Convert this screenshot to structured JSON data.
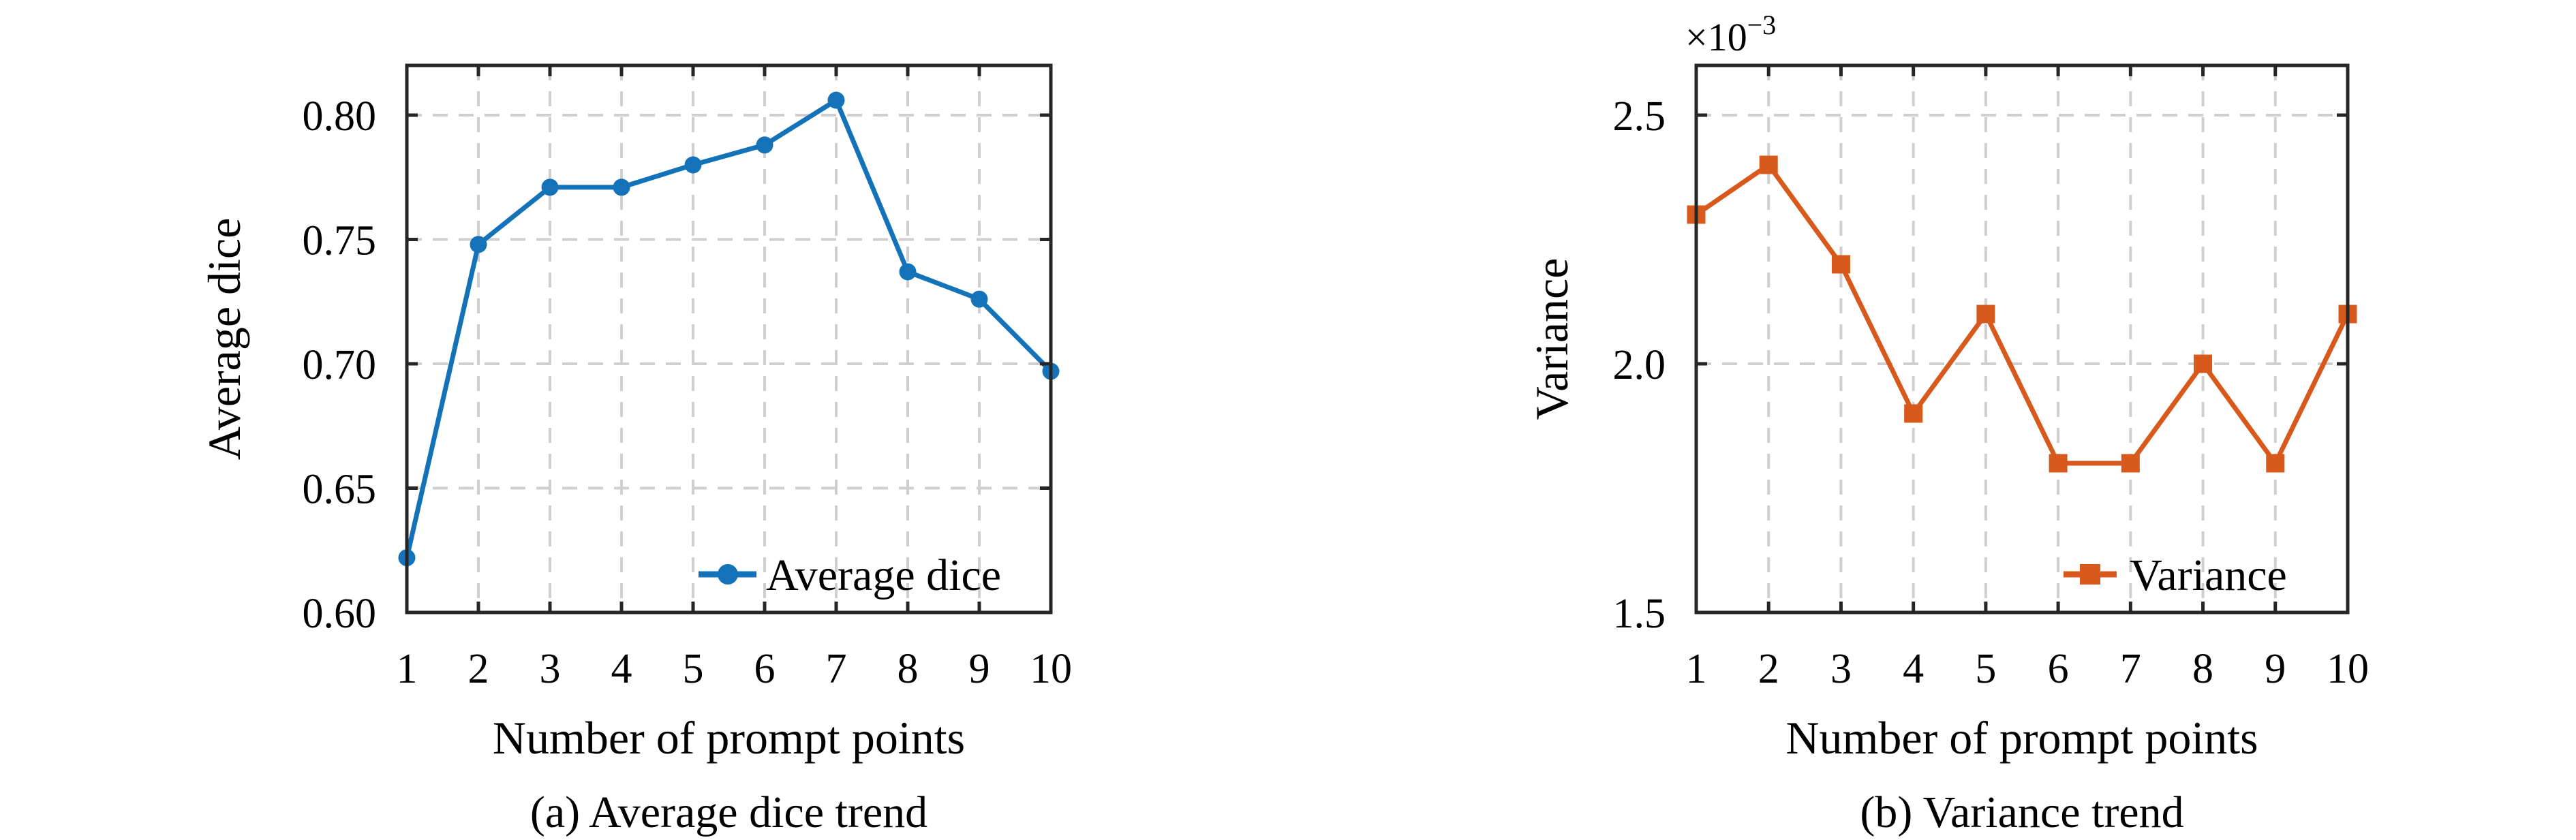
{
  "figure": {
    "panels": [
      {
        "id": "a",
        "caption": "(a) Average dice trend"
      },
      {
        "id": "b",
        "caption": "(b) Variance trend"
      }
    ]
  },
  "colors": {
    "axis": "#262626",
    "grid": "#cfcfcf",
    "text": "#000000",
    "background": "#ffffff",
    "series_blue": "#1472b9",
    "series_orange": "#d8591c"
  },
  "chart_data": [
    {
      "type": "line",
      "title": "",
      "xlabel": "Number of prompt points",
      "ylabel": "Average dice",
      "x": [
        1,
        2,
        3,
        4,
        5,
        6,
        7,
        8,
        9,
        10
      ],
      "series": [
        {
          "name": "Average dice",
          "color": "#1472b9",
          "marker": "circle",
          "values": [
            0.622,
            0.748,
            0.771,
            0.771,
            0.78,
            0.788,
            0.806,
            0.737,
            0.726,
            0.697
          ]
        }
      ],
      "xlim": [
        1,
        10
      ],
      "ylim": [
        0.6,
        0.82
      ],
      "xticks": [
        1,
        2,
        3,
        4,
        5,
        6,
        7,
        8,
        9,
        10
      ],
      "xtick_labels": [
        "1",
        "2",
        "3",
        "4",
        "5",
        "6",
        "7",
        "8",
        "9",
        "10"
      ],
      "yticks": [
        0.6,
        0.65,
        0.7,
        0.75,
        0.8
      ],
      "ytick_labels": [
        "0.60",
        "0.65",
        "0.70",
        "0.75",
        "0.80"
      ],
      "grid": true,
      "legend": {
        "labels": [
          "Average dice"
        ],
        "position": "inside-lower-right",
        "box": false
      }
    },
    {
      "type": "line",
      "title": "",
      "xlabel": "Number of prompt points",
      "ylabel": "Variance",
      "scale_label": {
        "base": "×10",
        "exponent": "−3"
      },
      "x": [
        1,
        2,
        3,
        4,
        5,
        6,
        7,
        8,
        9,
        10
      ],
      "series": [
        {
          "name": "Variance",
          "color": "#d8591c",
          "marker": "square",
          "values": [
            2.3,
            2.4,
            2.2,
            1.9,
            2.1,
            1.8,
            1.8,
            2.0,
            1.8,
            2.1
          ]
        }
      ],
      "xlim": [
        1,
        10
      ],
      "ylim": [
        1.5,
        2.6
      ],
      "xticks": [
        1,
        2,
        3,
        4,
        5,
        6,
        7,
        8,
        9,
        10
      ],
      "xtick_labels": [
        "1",
        "2",
        "3",
        "4",
        "5",
        "6",
        "7",
        "8",
        "9",
        "10"
      ],
      "yticks": [
        1.5,
        2.0,
        2.5
      ],
      "ytick_labels": [
        "1.5",
        "2.0",
        "2.5"
      ],
      "grid": true,
      "legend": {
        "labels": [
          "Variance"
        ],
        "position": "inside-lower-right",
        "box": false
      }
    }
  ]
}
